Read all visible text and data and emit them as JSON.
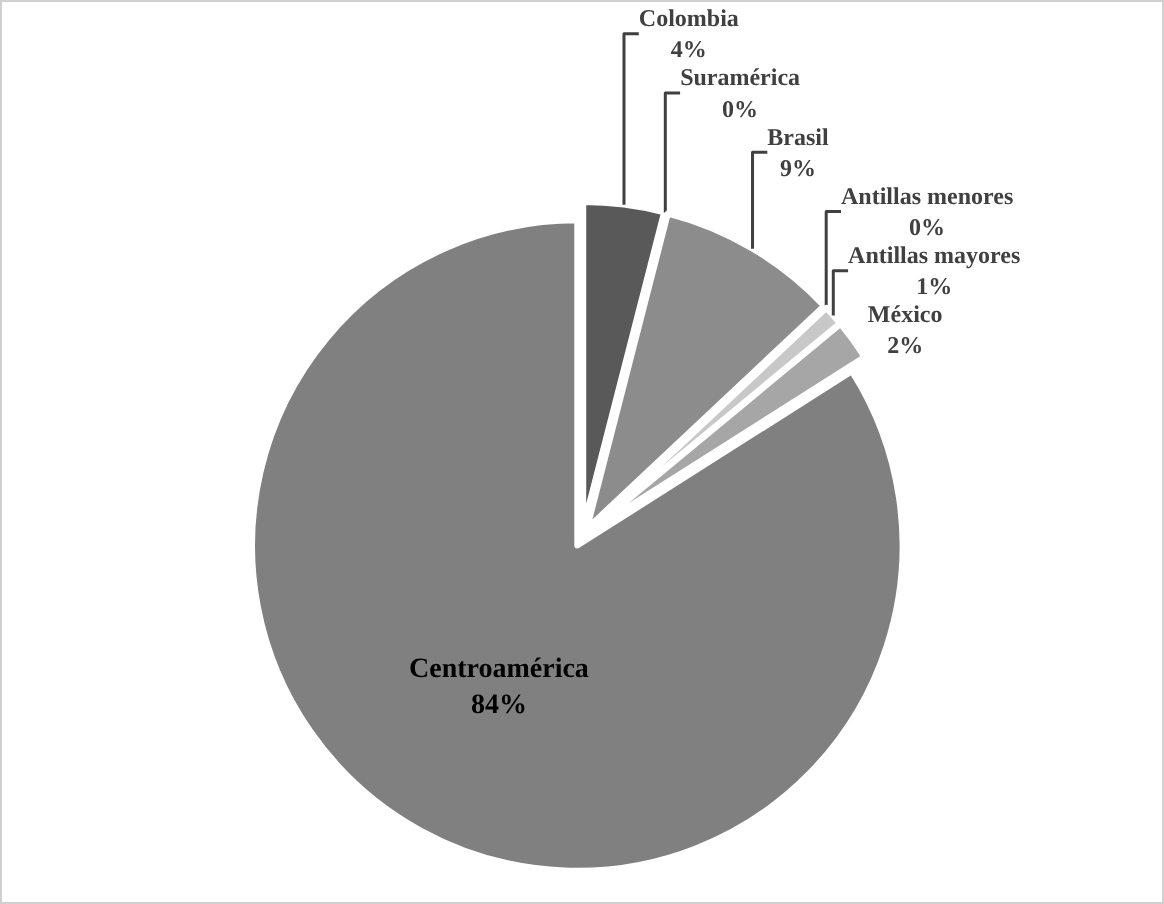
{
  "chart_data": {
    "type": "pie",
    "categories": [
      "Colombia",
      "Suramérica",
      "Brasil",
      "Antillas menores",
      "Antillas mayores",
      "México",
      "Centroamérica"
    ],
    "values": [
      4,
      0,
      9,
      0,
      1,
      2,
      84
    ],
    "value_labels": [
      "4%",
      "0%",
      "9%",
      "0%",
      "1%",
      "2%",
      "84%"
    ],
    "colors": [
      "#595959",
      "#404040",
      "#8c8c8c",
      "#e0e0e0",
      "#c8c8c8",
      "#a6a6a6",
      "#808080"
    ],
    "legend": false
  }
}
